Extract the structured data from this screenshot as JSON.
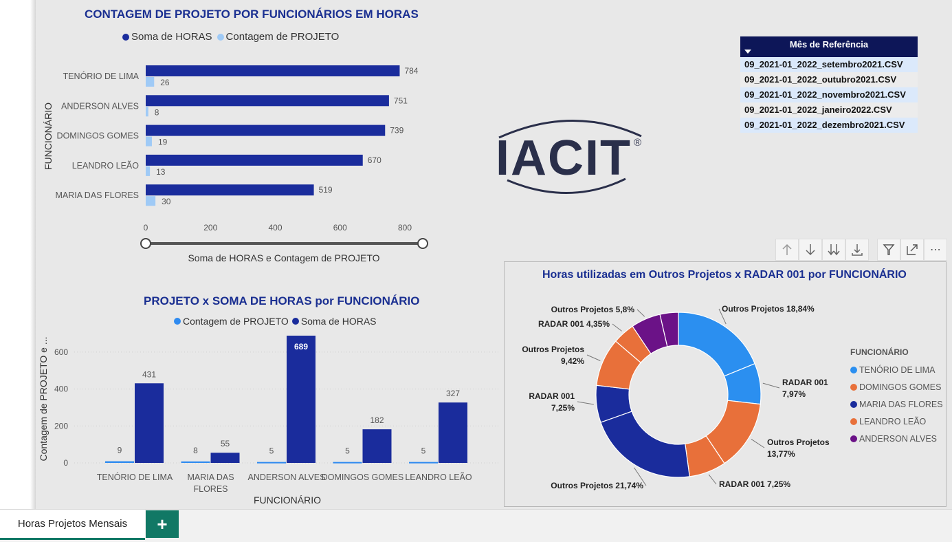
{
  "bar_chart": {
    "title": "CONTAGEM DE PROJETO POR FUNCIONÁRIOS EM HORAS",
    "legend": [
      {
        "label": "Soma de HORAS",
        "color": "#1a2c9c"
      },
      {
        "label": "Contagem de PROJETO",
        "color": "#9fcaf6"
      }
    ],
    "y_axis_title": "FUNCIONÁRIO",
    "x_axis_title": "Soma de HORAS e Contagem de PROJETO"
  },
  "column_chart": {
    "title": "PROJETO x SOMA DE HORAS por FUNCIONÁRIO",
    "legend": [
      {
        "label": "Contagem de PROJETO",
        "color": "#2f8bf0"
      },
      {
        "label": "Soma de HORAS",
        "color": "#1a2c9c"
      }
    ],
    "y_axis_title": "Contagem de PROJETO e ...",
    "x_axis_title": "FUNCIONÁRIO"
  },
  "donut_chart": {
    "title": "Horas utilizadas em Outros Projetos x RADAR 001 por FUNCIONÁRIO",
    "legend_title": "FUNCIONÁRIO",
    "legend": [
      {
        "label": "TENÓRIO DE LIMA",
        "color": "#2b8ff0"
      },
      {
        "label": "DOMINGOS GOMES",
        "color": "#e8703a"
      },
      {
        "label": "MARIA DAS FLORES",
        "color": "#1a2c9c"
      },
      {
        "label": "LEANDRO LEÃO",
        "color": "#e8703a"
      },
      {
        "label": "ANDERSON ALVES",
        "color": "#6b1287"
      }
    ]
  },
  "logo": {
    "text": "IACIT",
    "mark": "®"
  },
  "slicer": {
    "title": "Mês de Referência",
    "items": [
      {
        "label": "09_2021-01_2022_setembro2021.CSV",
        "selected": true
      },
      {
        "label": "09_2021-01_2022_outubro2021.CSV",
        "selected": false
      },
      {
        "label": "09_2021-01_2022_novembro2021.CSV",
        "selected": true
      },
      {
        "label": "09_2021-01_2022_janeiro2022.CSV",
        "selected": false
      },
      {
        "label": "09_2021-01_2022_dezembro2021.CSV",
        "selected": true
      }
    ]
  },
  "toolbar": {
    "icons": [
      "arrow-up-icon",
      "arrow-down-icon",
      "double-arrow-down-icon",
      "expand-hierarchy-icon",
      "filter-icon",
      "focus-mode-icon",
      "more-options-icon"
    ],
    "more": "⋯"
  },
  "tabs": {
    "active": "Horas Projetos Mensais",
    "add": "+"
  },
  "chart_data": [
    {
      "type": "bar",
      "orientation": "horizontal",
      "title": "CONTAGEM DE PROJETO POR FUNCIONÁRIOS EM HORAS",
      "categories": [
        "TENÓRIO DE LIMA",
        "ANDERSON ALVES",
        "DOMINGOS GOMES",
        "LEANDRO LEÃO",
        "MARIA DAS FLORES"
      ],
      "series": [
        {
          "name": "Soma de HORAS",
          "values": [
            784,
            751,
            739,
            670,
            519
          ],
          "color": "#1a2c9c"
        },
        {
          "name": "Contagem de PROJETO",
          "values": [
            26,
            8,
            19,
            13,
            30
          ],
          "color": "#9fcaf6"
        }
      ],
      "xlabel": "Soma de HORAS e Contagem de PROJETO",
      "ylabel": "FUNCIONÁRIO",
      "xlim": [
        0,
        800
      ],
      "xticks": [
        "0",
        "200",
        "400",
        "600",
        "800"
      ],
      "grid": false,
      "legend_position": "top"
    },
    {
      "type": "bar",
      "orientation": "vertical",
      "title": "PROJETO x SOMA DE HORAS por FUNCIONÁRIO",
      "categories": [
        "TENÓRIO DE LIMA",
        "MARIA DAS FLORES",
        "ANDERSON ALVES",
        "DOMINGOS GOMES",
        "LEANDRO LEÃO"
      ],
      "series": [
        {
          "name": "Contagem de PROJETO",
          "values": [
            9,
            8,
            5,
            5,
            5
          ],
          "color": "#2f8bf0"
        },
        {
          "name": "Soma de HORAS",
          "values": [
            431,
            55,
            689,
            182,
            327
          ],
          "color": "#1a2c9c"
        }
      ],
      "xlabel": "FUNCIONÁRIO",
      "ylabel": "Contagem de PROJETO e ...",
      "ylim": [
        0,
        700
      ],
      "yticks": [
        "0",
        "200",
        "400",
        "600"
      ],
      "grid": true,
      "legend_position": "top"
    },
    {
      "type": "pie",
      "donut": true,
      "title": "Horas utilizadas em Outros Projetos x RADAR 001 por FUNCIONÁRIO",
      "slices": [
        {
          "label": "Outros Projetos 18,84%",
          "value": 18.84,
          "color": "#2b8ff0"
        },
        {
          "label": "RADAR 001\n7,97%",
          "value": 7.97,
          "color": "#2b8ff0"
        },
        {
          "label": "Outros Projetos\n13,77%",
          "value": 13.77,
          "color": "#e8703a"
        },
        {
          "label": "RADAR 001 7,25%",
          "value": 7.25,
          "color": "#e8703a"
        },
        {
          "label": "Outros Projetos 21,74%",
          "value": 21.74,
          "color": "#1a2c9c"
        },
        {
          "label": "RADAR 001\n7,25%",
          "value": 7.25,
          "color": "#1a2c9c"
        },
        {
          "label": "Outros Projetos\n9,42%",
          "value": 9.42,
          "color": "#e8703a"
        },
        {
          "label": "RADAR 001 4,35%",
          "value": 4.35,
          "color": "#e8703a"
        },
        {
          "label": "Outros Projetos 5,8%",
          "value": 5.8,
          "color": "#6b1287"
        },
        {
          "label": "",
          "value": 3.6,
          "color": "#6b1287"
        }
      ],
      "legend_title": "FUNCIONÁRIO",
      "legend_position": "right"
    }
  ]
}
